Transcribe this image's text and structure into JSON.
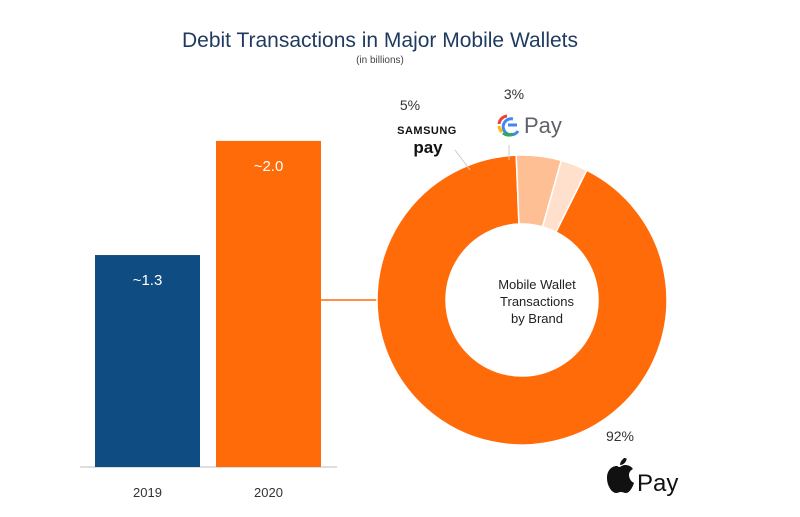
{
  "chart_data": [
    {
      "type": "bar",
      "title": "Debit Transactions in Major Mobile Wallets",
      "subtitle": "(in billions)",
      "categories": [
        "2019",
        "2020"
      ],
      "values": [
        1.3,
        2.0
      ],
      "value_labels": [
        "~1.3",
        "~2.0"
      ],
      "colors": [
        "#0f4c81",
        "#ff6b08"
      ],
      "ylim": [
        0,
        2.3
      ]
    },
    {
      "type": "pie",
      "center_label": [
        "Mobile Wallet",
        "Transactions",
        "by Brand"
      ],
      "slices": [
        {
          "name": "Apple Pay",
          "value": 92,
          "label": "92%",
          "color": "#ff6b08"
        },
        {
          "name": "Samsung Pay",
          "value": 5,
          "label": "5%",
          "color": "#ffbf94"
        },
        {
          "name": "Google Pay",
          "value": 3,
          "label": "3%",
          "color": "#ffe0cc"
        }
      ]
    }
  ],
  "brands": {
    "samsung_top": "SAMSUNG",
    "samsung_bottom": "pay",
    "google_g": "G",
    "google_pay": "Pay",
    "apple_pay": "Pay"
  },
  "colors": {
    "title": "#1f3a5f",
    "bar_2019": "#0f4c81",
    "bar_2020": "#ff6b08",
    "donut_light_1": "#ffbf94",
    "donut_light_2": "#ffe0cc",
    "google_blue": "#4285F4",
    "google_red": "#EA4335",
    "google_yellow": "#FBBC05",
    "google_green": "#34A853"
  },
  "icons": {
    "apple": "apple-logo-icon",
    "google": "google-g-icon"
  }
}
